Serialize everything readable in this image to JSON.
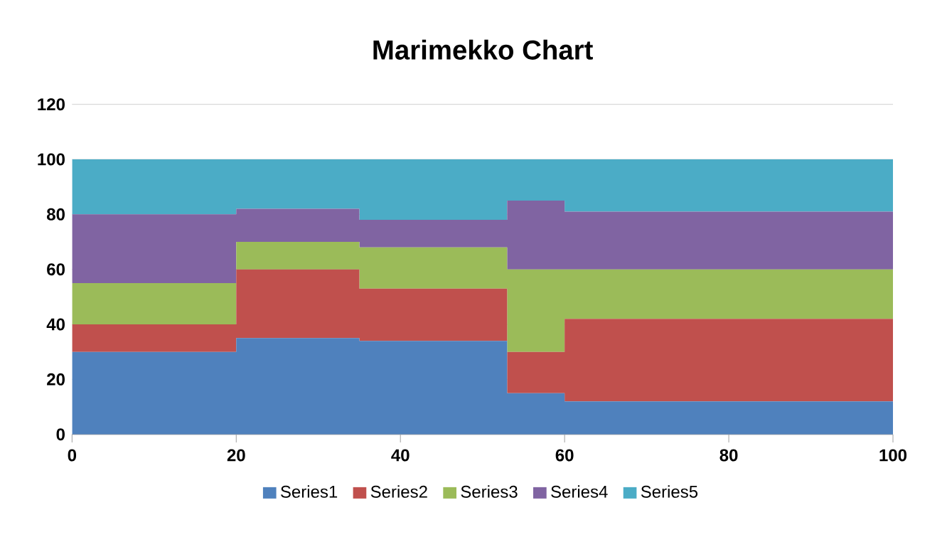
{
  "chart_data": {
    "type": "area",
    "title": "Marimekko Chart",
    "stacked": true,
    "x": [
      0,
      20,
      20,
      35,
      35,
      53,
      53,
      60,
      60,
      100
    ],
    "series": [
      {
        "name": "Series1",
        "color": "#4f81bd",
        "values": [
          30,
          30,
          35,
          35,
          34,
          34,
          15,
          15,
          12,
          12
        ]
      },
      {
        "name": "Series2",
        "color": "#c0504d",
        "values": [
          10,
          10,
          25,
          25,
          19,
          19,
          15,
          15,
          30,
          30
        ]
      },
      {
        "name": "Series3",
        "color": "#9bbb59",
        "values": [
          15,
          15,
          10,
          10,
          15,
          15,
          30,
          30,
          18,
          18
        ]
      },
      {
        "name": "Series4",
        "color": "#8064a2",
        "values": [
          25,
          25,
          12,
          12,
          10,
          10,
          25,
          25,
          21,
          21
        ]
      },
      {
        "name": "Series5",
        "color": "#4bacc6",
        "values": [
          20,
          20,
          18,
          18,
          22,
          22,
          15,
          15,
          19,
          19
        ]
      }
    ],
    "xlim": [
      0,
      100
    ],
    "ylim": [
      0,
      120
    ],
    "xticks": [
      0,
      20,
      40,
      60,
      80,
      100
    ],
    "yticks": [
      0,
      20,
      40,
      60,
      80,
      100,
      120
    ],
    "grid": "y",
    "legend": "bottom"
  }
}
